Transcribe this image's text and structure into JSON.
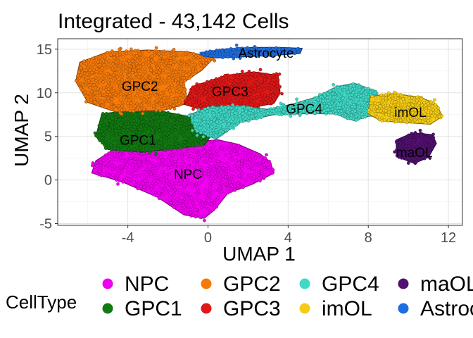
{
  "chart_data": {
    "type": "scatter",
    "title": "Integrated - 43,142 Cells",
    "xlabel": "UMAP 1",
    "ylabel": "UMAP 2",
    "xlim": [
      -7.5,
      12.7
    ],
    "ylim": [
      -5.2,
      16.2
    ],
    "xticks": [
      -4,
      0,
      4,
      8,
      12
    ],
    "yticks": [
      -5,
      0,
      5,
      10,
      15
    ],
    "xtick_labels": [
      "-4",
      "0",
      "4",
      "8",
      "12"
    ],
    "ytick_labels": [
      "-5",
      "0",
      "5",
      "10",
      "15"
    ],
    "grid": true,
    "legend": {
      "title": "CellType",
      "position": "bottom"
    },
    "series": [
      {
        "name": "NPC",
        "color": "#F000F0",
        "label_pos": [
          -1.0,
          0.7
        ],
        "polygon": [
          [
            -5.6,
            2.2
          ],
          [
            -4.5,
            3.8
          ],
          [
            -2.5,
            4.3
          ],
          [
            -0.8,
            4.4
          ],
          [
            0.5,
            4.6
          ],
          [
            1.5,
            4.1
          ],
          [
            2.6,
            3.0
          ],
          [
            3.1,
            2.1
          ],
          [
            3.3,
            0.8
          ],
          [
            2.2,
            -0.5
          ],
          [
            1.0,
            -1.5
          ],
          [
            0.3,
            -3.5
          ],
          [
            -0.2,
            -4.4
          ],
          [
            -1.2,
            -4.0
          ],
          [
            -2.5,
            -2.0
          ],
          [
            -4.3,
            -0.2
          ],
          [
            -5.8,
            0.8
          ]
        ]
      },
      {
        "name": "GPC1",
        "color": "#127A12",
        "label_pos": [
          -3.5,
          4.6
        ],
        "polygon": [
          [
            -5.3,
            7.6
          ],
          [
            -3.0,
            8.2
          ],
          [
            -1.0,
            7.3
          ],
          [
            0.0,
            6.4
          ],
          [
            0.2,
            5.2
          ],
          [
            -0.2,
            4.0
          ],
          [
            -1.6,
            3.6
          ],
          [
            -3.3,
            3.2
          ],
          [
            -5.0,
            3.5
          ],
          [
            -5.6,
            5.0
          ]
        ]
      },
      {
        "name": "GPC2",
        "color": "#F57A0A",
        "label_pos": [
          -3.4,
          10.8
        ],
        "polygon": [
          [
            -6.4,
            13.5
          ],
          [
            -5.0,
            14.7
          ],
          [
            -3.0,
            14.9
          ],
          [
            -1.0,
            14.7
          ],
          [
            0.3,
            14.0
          ],
          [
            -0.3,
            12.6
          ],
          [
            -1.2,
            11.2
          ],
          [
            -1.0,
            8.8
          ],
          [
            -2.2,
            8.0
          ],
          [
            -4.6,
            7.8
          ],
          [
            -6.0,
            8.9
          ],
          [
            -6.6,
            11.3
          ]
        ]
      },
      {
        "name": "GPC3",
        "color": "#E01818",
        "label_pos": [
          1.1,
          10.2
        ],
        "polygon": [
          [
            -0.8,
            10.7
          ],
          [
            0.9,
            12.0
          ],
          [
            2.3,
            12.4
          ],
          [
            3.5,
            12.0
          ],
          [
            3.6,
            10.0
          ],
          [
            3.3,
            8.8
          ],
          [
            2.2,
            8.3
          ],
          [
            0.9,
            8.4
          ],
          [
            -0.4,
            8.1
          ],
          [
            -1.2,
            8.7
          ]
        ]
      },
      {
        "name": "GPC4",
        "color": "#3FD9C6",
        "label_pos": [
          4.8,
          8.2
        ],
        "polygon": [
          [
            -0.9,
            7.5
          ],
          [
            0.1,
            8.4
          ],
          [
            1.5,
            8.5
          ],
          [
            3.0,
            8.1
          ],
          [
            4.2,
            8.7
          ],
          [
            5.4,
            9.5
          ],
          [
            6.4,
            10.7
          ],
          [
            7.3,
            11.1
          ],
          [
            8.4,
            10.2
          ],
          [
            8.7,
            7.8
          ],
          [
            7.3,
            6.8
          ],
          [
            6.3,
            7.6
          ],
          [
            4.8,
            7.6
          ],
          [
            3.3,
            7.5
          ],
          [
            1.6,
            6.6
          ],
          [
            0.4,
            4.7
          ],
          [
            -0.6,
            5.6
          ]
        ]
      },
      {
        "name": "imOL",
        "color": "#F5CC14",
        "label_pos": [
          10.1,
          7.8
        ],
        "polygon": [
          [
            8.1,
            9.6
          ],
          [
            9.3,
            9.9
          ],
          [
            10.6,
            9.5
          ],
          [
            11.4,
            8.7
          ],
          [
            11.7,
            7.3
          ],
          [
            11.1,
            6.4
          ],
          [
            9.7,
            6.6
          ],
          [
            8.6,
            6.8
          ],
          [
            8.0,
            7.6
          ]
        ]
      },
      {
        "name": "maOL",
        "color": "#521070",
        "label_pos": [
          10.3,
          3.2
        ],
        "polygon": [
          [
            9.4,
            4.6
          ],
          [
            10.2,
            5.4
          ],
          [
            11.2,
            5.2
          ],
          [
            11.4,
            4.2
          ],
          [
            11.0,
            2.6
          ],
          [
            10.3,
            1.9
          ],
          [
            9.4,
            2.7
          ]
        ]
      },
      {
        "name": "Astrocyte",
        "color": "#1E6DE0",
        "label_pos": [
          2.9,
          14.6
        ],
        "polygon": [
          [
            -0.4,
            14.6
          ],
          [
            0.8,
            15.0
          ],
          [
            2.2,
            15.2
          ],
          [
            3.6,
            15.2
          ],
          [
            4.7,
            15.1
          ],
          [
            4.6,
            14.5
          ],
          [
            3.3,
            14.3
          ],
          [
            1.6,
            14.1
          ],
          [
            0.4,
            14.0
          ],
          [
            -0.2,
            14.2
          ]
        ]
      }
    ],
    "label_order": [
      "NPC",
      "GPC1",
      "GPC2",
      "GPC3",
      "GPC4",
      "imOL",
      "maOL",
      "Astrocyte"
    ]
  },
  "legend_items": [
    {
      "name": "NPC",
      "color": "#F000F0"
    },
    {
      "name": "GPC1",
      "color": "#127A12"
    },
    {
      "name": "GPC2",
      "color": "#F57A0A"
    },
    {
      "name": "GPC3",
      "color": "#E01818"
    },
    {
      "name": "GPC4",
      "color": "#3FD9C6"
    },
    {
      "name": "imOL",
      "color": "#F5CC14"
    },
    {
      "name": "maOL",
      "color": "#521070"
    },
    {
      "name": "Astrocyte",
      "color": "#1E6DE0"
    }
  ]
}
